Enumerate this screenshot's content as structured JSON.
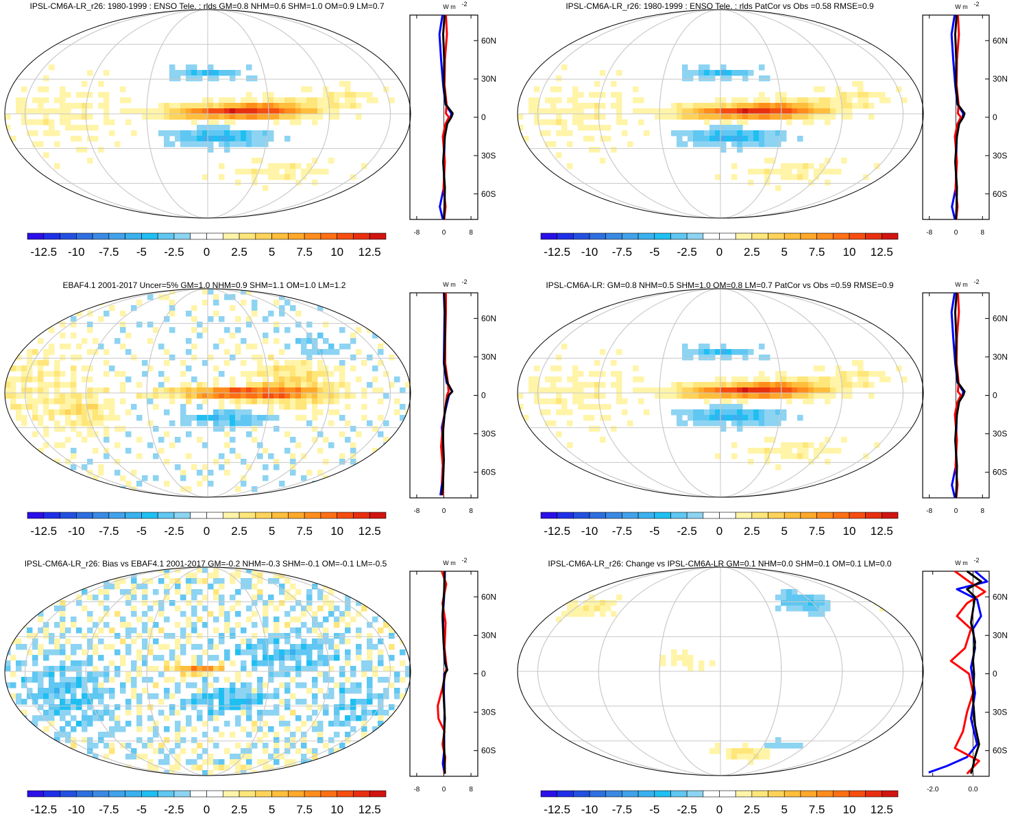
{
  "chart_data": [
    {
      "type": "heatmap",
      "title": "IPSL-CM6A-LR_r26: 1980-1999 : ENSO Tele. : rlds GM=0.8 NHM=0.6 SHM=1.0 OM=0.9 LM=0.7",
      "pattern": "model",
      "zonal_profile": {
        "units_main": "W m",
        "units_exp": "-2",
        "ylabels": [
          "60N",
          "30N",
          "0",
          "30S",
          "60S"
        ],
        "ylim": [
          -80,
          80
        ],
        "xlim": [
          -10,
          10
        ],
        "xticks": [
          -8,
          0,
          8
        ],
        "xtick_labels": [
          "-8",
          "0",
          "8"
        ],
        "series": [
          {
            "name": "black",
            "color": "#000000"
          },
          {
            "name": "red",
            "color": "#ff0000"
          },
          {
            "name": "blue",
            "color": "#0000ff"
          }
        ]
      }
    },
    {
      "type": "heatmap",
      "title": "IPSL-CM6A-LR_r26: 1980-1999 : ENSO Tele. : rlds PatCor vs Obs =0.58 RMSE=0.9",
      "pattern": "model",
      "zonal_profile": {
        "units_main": "W m",
        "units_exp": "-2",
        "ylabels": [
          "60N",
          "30N",
          "0",
          "30S",
          "60S"
        ],
        "ylim": [
          -80,
          80
        ],
        "xlim": [
          -10,
          10
        ],
        "xticks": [
          -8,
          0,
          8
        ],
        "xtick_labels": [
          "-8",
          "0",
          "8"
        ],
        "series": [
          {
            "name": "black",
            "color": "#000000"
          },
          {
            "name": "red",
            "color": "#ff0000"
          },
          {
            "name": "blue",
            "color": "#0000ff"
          }
        ]
      }
    },
    {
      "type": "heatmap",
      "title": "EBAF4.1 2001-2017 Uncer=5% GM=1.0 NHM=0.9 SHM=1.1 OM=1.0 LM=1.2",
      "pattern": "obs",
      "zonal_profile": {
        "units_main": "W m",
        "units_exp": "-2",
        "ylabels": [
          "60N",
          "30N",
          "0",
          "30S",
          "60S"
        ],
        "ylim": [
          -80,
          80
        ],
        "xlim": [
          -10,
          10
        ],
        "xticks": [
          -8,
          0,
          8
        ],
        "xtick_labels": [
          "-8",
          "0",
          "8"
        ],
        "series": [
          {
            "name": "black",
            "color": "#000000"
          },
          {
            "name": "red",
            "color": "#ff0000"
          },
          {
            "name": "blue",
            "color": "#0000ff"
          }
        ]
      }
    },
    {
      "type": "heatmap",
      "title": "IPSL-CM6A-LR: GM=0.8 NHM=0.5 SHM=1.0 OM=0.8 LM=0.7 PatCor vs Obs =0.59 RMSE=0.9",
      "pattern": "model",
      "zonal_profile": {
        "units_main": "W m",
        "units_exp": "-2",
        "ylabels": [
          "60N",
          "30N",
          "0",
          "30S",
          "60S"
        ],
        "ylim": [
          -80,
          80
        ],
        "xlim": [
          -10,
          10
        ],
        "xticks": [
          -8,
          0,
          8
        ],
        "xtick_labels": [
          "-8",
          "0",
          "8"
        ],
        "series": [
          {
            "name": "black",
            "color": "#000000"
          },
          {
            "name": "red",
            "color": "#ff0000"
          },
          {
            "name": "blue",
            "color": "#0000ff"
          }
        ]
      }
    },
    {
      "type": "heatmap",
      "title": "IPSL-CM6A-LR_r26: Bias vs EBAF4.1 2001-2017 GM=-0.2 NHM=-0.3 SHM=-0.1 OM=-0.1 LM=-0.5",
      "pattern": "bias",
      "zonal_profile": {
        "units_main": "W m",
        "units_exp": "-2",
        "ylabels": [
          "60N",
          "30N",
          "0",
          "30S",
          "60S"
        ],
        "ylim": [
          -80,
          80
        ],
        "xlim": [
          -10,
          10
        ],
        "xticks": [
          -8,
          0,
          8
        ],
        "xtick_labels": [
          "-8",
          "0",
          "8"
        ],
        "series": [
          {
            "name": "black",
            "color": "#000000"
          },
          {
            "name": "red",
            "color": "#ff0000"
          },
          {
            "name": "blue",
            "color": "#0000ff"
          }
        ]
      }
    },
    {
      "type": "heatmap",
      "title": "IPSL-CM6A-LR_r26: Change vs IPSL-CM6A-LR GM=0.1 NHM=0.0 SHM=0.1 OM=0.1 LM=0.0",
      "pattern": "change",
      "zonal_profile": {
        "units_main": "W m",
        "units_exp": "-2",
        "ylabels": [
          "60N",
          "30N",
          "0",
          "30S",
          "60S"
        ],
        "ylim": [
          -80,
          80
        ],
        "xlim": [
          -2.5,
          0.8
        ],
        "xticks": [
          -2.0,
          0.0
        ],
        "xtick_labels": [
          "-2.0",
          "0.0"
        ],
        "series": [
          {
            "name": "black",
            "color": "#000000"
          },
          {
            "name": "red",
            "color": "#ff0000"
          },
          {
            "name": "blue",
            "color": "#0000ff"
          }
        ]
      }
    }
  ],
  "colorbar": {
    "levels": [
      -13.75,
      -12.5,
      -11.25,
      -10,
      -8.75,
      -7.5,
      -6.25,
      -5,
      -3.75,
      -2.5,
      -1.25,
      0,
      1.25,
      2.5,
      3.75,
      5,
      6.25,
      7.5,
      8.75,
      10,
      11.25,
      12.5,
      13.75
    ],
    "colors": [
      "#2a0fe8",
      "#1f2fe8",
      "#2350e0",
      "#2e6fe0",
      "#3a8ae4",
      "#41a2ea",
      "#3ab1ee",
      "#1fbff2",
      "#5fc7f2",
      "#8dd3f2",
      "#ffffff",
      "#ffffff",
      "#fff4a8",
      "#ffe67a",
      "#ffd35a",
      "#ffbe3c",
      "#ffa82a",
      "#ff8d1c",
      "#ff6f14",
      "#f54e10",
      "#e8300f",
      "#d01410"
    ],
    "labels": [
      "-12.5",
      "-10",
      "-7.5",
      "-5",
      "-2.5",
      "0",
      "2.5",
      "5",
      "7.5",
      "10",
      "12.5"
    ]
  }
}
